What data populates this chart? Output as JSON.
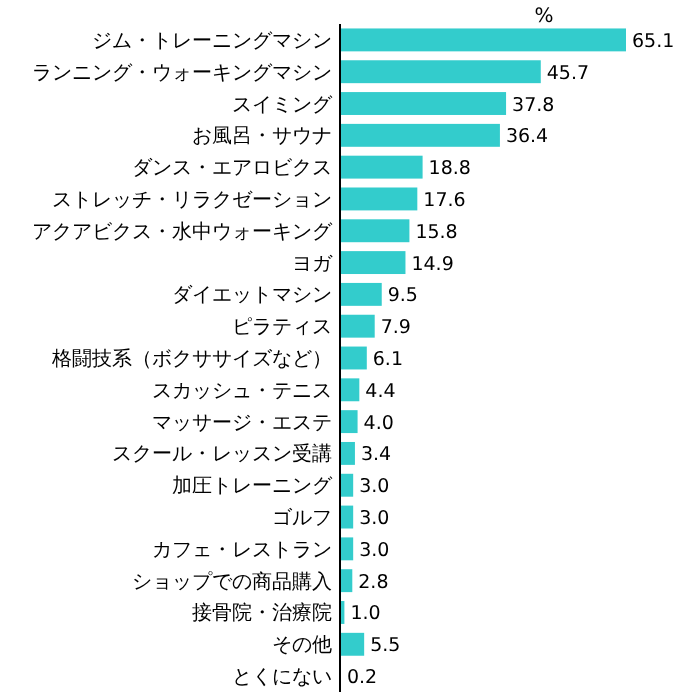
{
  "chart_data": {
    "type": "bar",
    "orientation": "horizontal",
    "title": "%",
    "value_labels": [
      "65.1",
      "45.7",
      "37.8",
      "36.4",
      "18.8",
      "17.6",
      "15.8",
      "14.9",
      "9.5",
      "7.9",
      "6.1",
      "4.4",
      "4.0",
      "3.4",
      "3.0",
      "3.0",
      "3.0",
      "2.8",
      "1.0",
      "5.5",
      "0.2"
    ],
    "color": "#33cccc",
    "categories": [
      "ジム・トレーニングマシン",
      "ランニング・ウォーキングマシン",
      "スイミング",
      "お風呂・サウナ",
      "ダンス・エアロビクス",
      "ストレッチ・リラクゼーション",
      "アクアビクス・水中ウォーキング",
      "ヨガ",
      "ダイエットマシン",
      "ピラティス",
      "格闘技系（ボクササイズなど）",
      "スカッシュ・テニス",
      "マッサージ・エステ",
      "スクール・レッスン受講",
      "加圧トレーニング",
      "ゴルフ",
      "カフェ・レストラン",
      "ショップでの商品購入",
      "接骨院・治療院",
      "その他",
      "とくにない"
    ],
    "values": [
      65.1,
      45.7,
      37.8,
      36.4,
      18.8,
      17.6,
      15.8,
      14.9,
      9.5,
      7.9,
      6.1,
      4.4,
      4.0,
      3.4,
      3.0,
      3.0,
      3.0,
      2.8,
      1.0,
      5.5,
      0.2
    ]
  }
}
